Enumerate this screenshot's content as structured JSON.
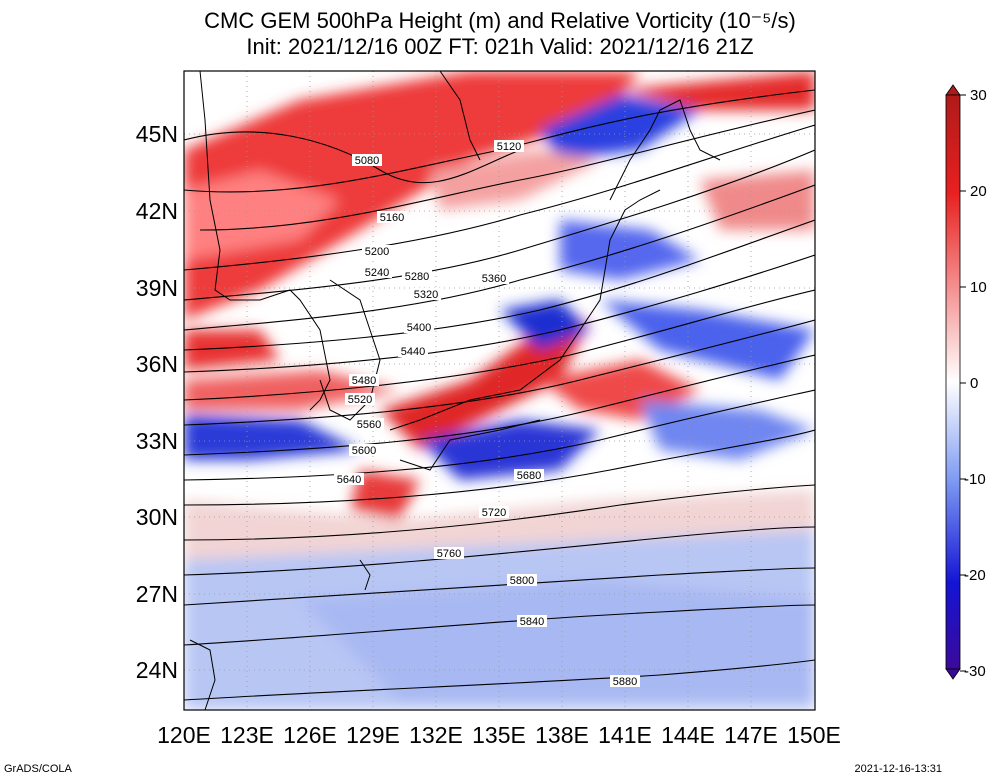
{
  "title": {
    "line1": "CMC GEM 500hPa Height (m) and Relative Vorticity (10⁻⁵/s)",
    "line2": "Init: 2021/12/16 00Z  FT: 021h  Valid: 2021/12/16 21Z"
  },
  "map": {
    "lat_range": [
      22.5,
      47.5
    ],
    "lon_range": [
      120,
      150
    ],
    "lat_ticks": [
      "45N",
      "42N",
      "39N",
      "36N",
      "33N",
      "30N",
      "27N",
      "24N"
    ],
    "lat_tick_values": [
      45,
      42,
      39,
      36,
      33,
      30,
      27,
      24
    ],
    "lon_ticks": [
      "120E",
      "123E",
      "126E",
      "129E",
      "132E",
      "135E",
      "138E",
      "141E",
      "144E",
      "147E",
      "150E"
    ],
    "lon_tick_values": [
      120,
      123,
      126,
      129,
      132,
      135,
      138,
      141,
      144,
      147,
      150
    ],
    "grid": true,
    "contour_labels": [
      "5080",
      "5120",
      "5160",
      "5200",
      "5240",
      "5280",
      "5320",
      "5360",
      "5400",
      "5440",
      "5480",
      "5520",
      "5560",
      "5600",
      "5640",
      "5680",
      "5720",
      "5760",
      "5800",
      "5840",
      "5880"
    ],
    "field": "500hPa height contours (m) over relative vorticity shading"
  },
  "colorbar": {
    "ticks": [
      "30",
      "20",
      "10",
      "0",
      "-10",
      "-20",
      "-30"
    ],
    "tick_values": [
      30,
      20,
      10,
      0,
      -10,
      -20,
      -30
    ],
    "colors": [
      "#3b0a9a",
      "#1414d4",
      "#4b6cf0",
      "#a7bbf6",
      "#ffffff",
      "#f6b0b0",
      "#f04646",
      "#d41818",
      "#b01a1a"
    ]
  },
  "footer": {
    "left": "GrADS/COLA",
    "right": "2021-12-16-13:31"
  }
}
